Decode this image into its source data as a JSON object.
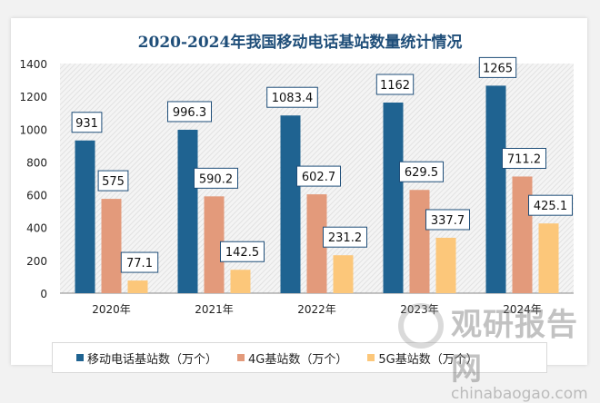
{
  "chart_data": {
    "type": "bar",
    "title": "2020-2024年我国移动电话基站数量统计情况",
    "categories": [
      "2020年",
      "2021年",
      "2022年",
      "2023年",
      "2024年"
    ],
    "ylim": [
      0,
      1400
    ],
    "yticks": [
      0,
      200,
      400,
      600,
      800,
      1000,
      1200,
      1400
    ],
    "grid": false,
    "legend": "bottom",
    "series": [
      {
        "name": "移动电话基站数（万个）",
        "color": "#1f6391",
        "values": [
          931,
          996.3,
          1083.4,
          1162,
          1265
        ]
      },
      {
        "name": "4G基站数（万个）",
        "color": "#e39a7b",
        "values": [
          575,
          590.2,
          602.7,
          629.5,
          711.2
        ]
      },
      {
        "name": "5G基站数（万个）",
        "color": "#fcc77a",
        "values": [
          77.1,
          142.5,
          231.2,
          337.7,
          425.1
        ]
      }
    ]
  },
  "watermark": {
    "name": "观研报告网",
    "url": "chinabaogao.com"
  }
}
